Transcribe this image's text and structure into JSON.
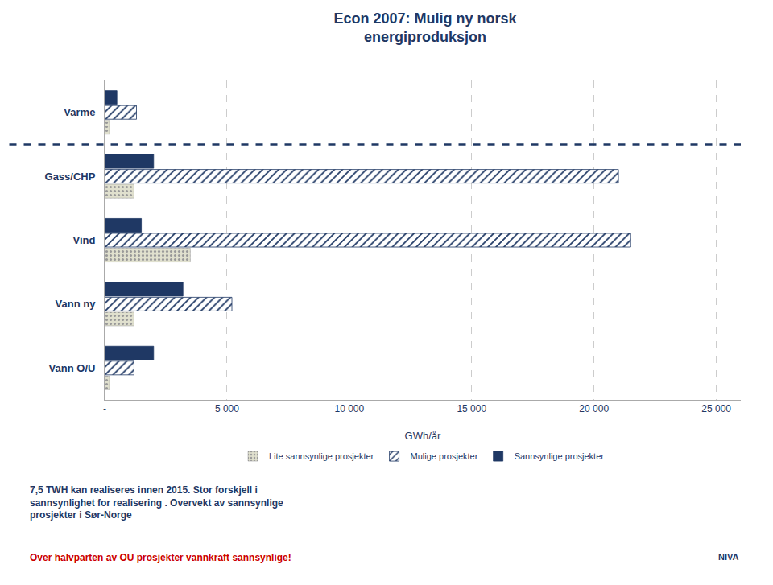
{
  "chart_data": {
    "type": "bar",
    "orientation": "horizontal",
    "title": "Econ 2007: Mulig ny norsk\nenergiproduksjon",
    "x_label": "GWh/år",
    "categories": [
      "Vann O/U",
      "Vann ny",
      "Vind",
      "Gass/CHP",
      "Varme"
    ],
    "series": [
      {
        "name": "Lite sannsynlige prosjekter",
        "color": "#e0e0ce",
        "marker": "dots",
        "values": [
          200,
          1200,
          3500,
          1200,
          200
        ]
      },
      {
        "name": "Mulige prosjekter",
        "color": "#1f3864",
        "marker": "hatch",
        "values": [
          1200,
          5200,
          21500,
          21000,
          1300
        ]
      },
      {
        "name": "Sannsynlige prosjekter",
        "color": "#1f3864",
        "marker": "solid",
        "values": [
          2000,
          3200,
          1500,
          2000,
          500
        ]
      }
    ],
    "xlim": [
      0,
      26000
    ],
    "xticks": [
      {
        "value": 0,
        "label": "-"
      },
      {
        "value": 5000,
        "label": "5 000"
      },
      {
        "value": 10000,
        "label": "10 000"
      },
      {
        "value": 15000,
        "label": "15 000"
      },
      {
        "value": 20000,
        "label": "20 000"
      },
      {
        "value": 25000,
        "label": "25 000"
      }
    ],
    "grid": true,
    "legend": "bottom",
    "color": "#1f3864",
    "annotations": [
      {
        "text": "7,5 TWH kan realiseres innen 2015. Stor forskjell i\nsannsynlighet for realisering . Overvekt av sannsynlige\nprosjekter i Sør-Norge"
      },
      {
        "text": "Over halvparten av OU prosjekter vannkraft sannsynlige!",
        "color": "#cc0000"
      },
      {
        "text": "NIVA"
      }
    ]
  }
}
